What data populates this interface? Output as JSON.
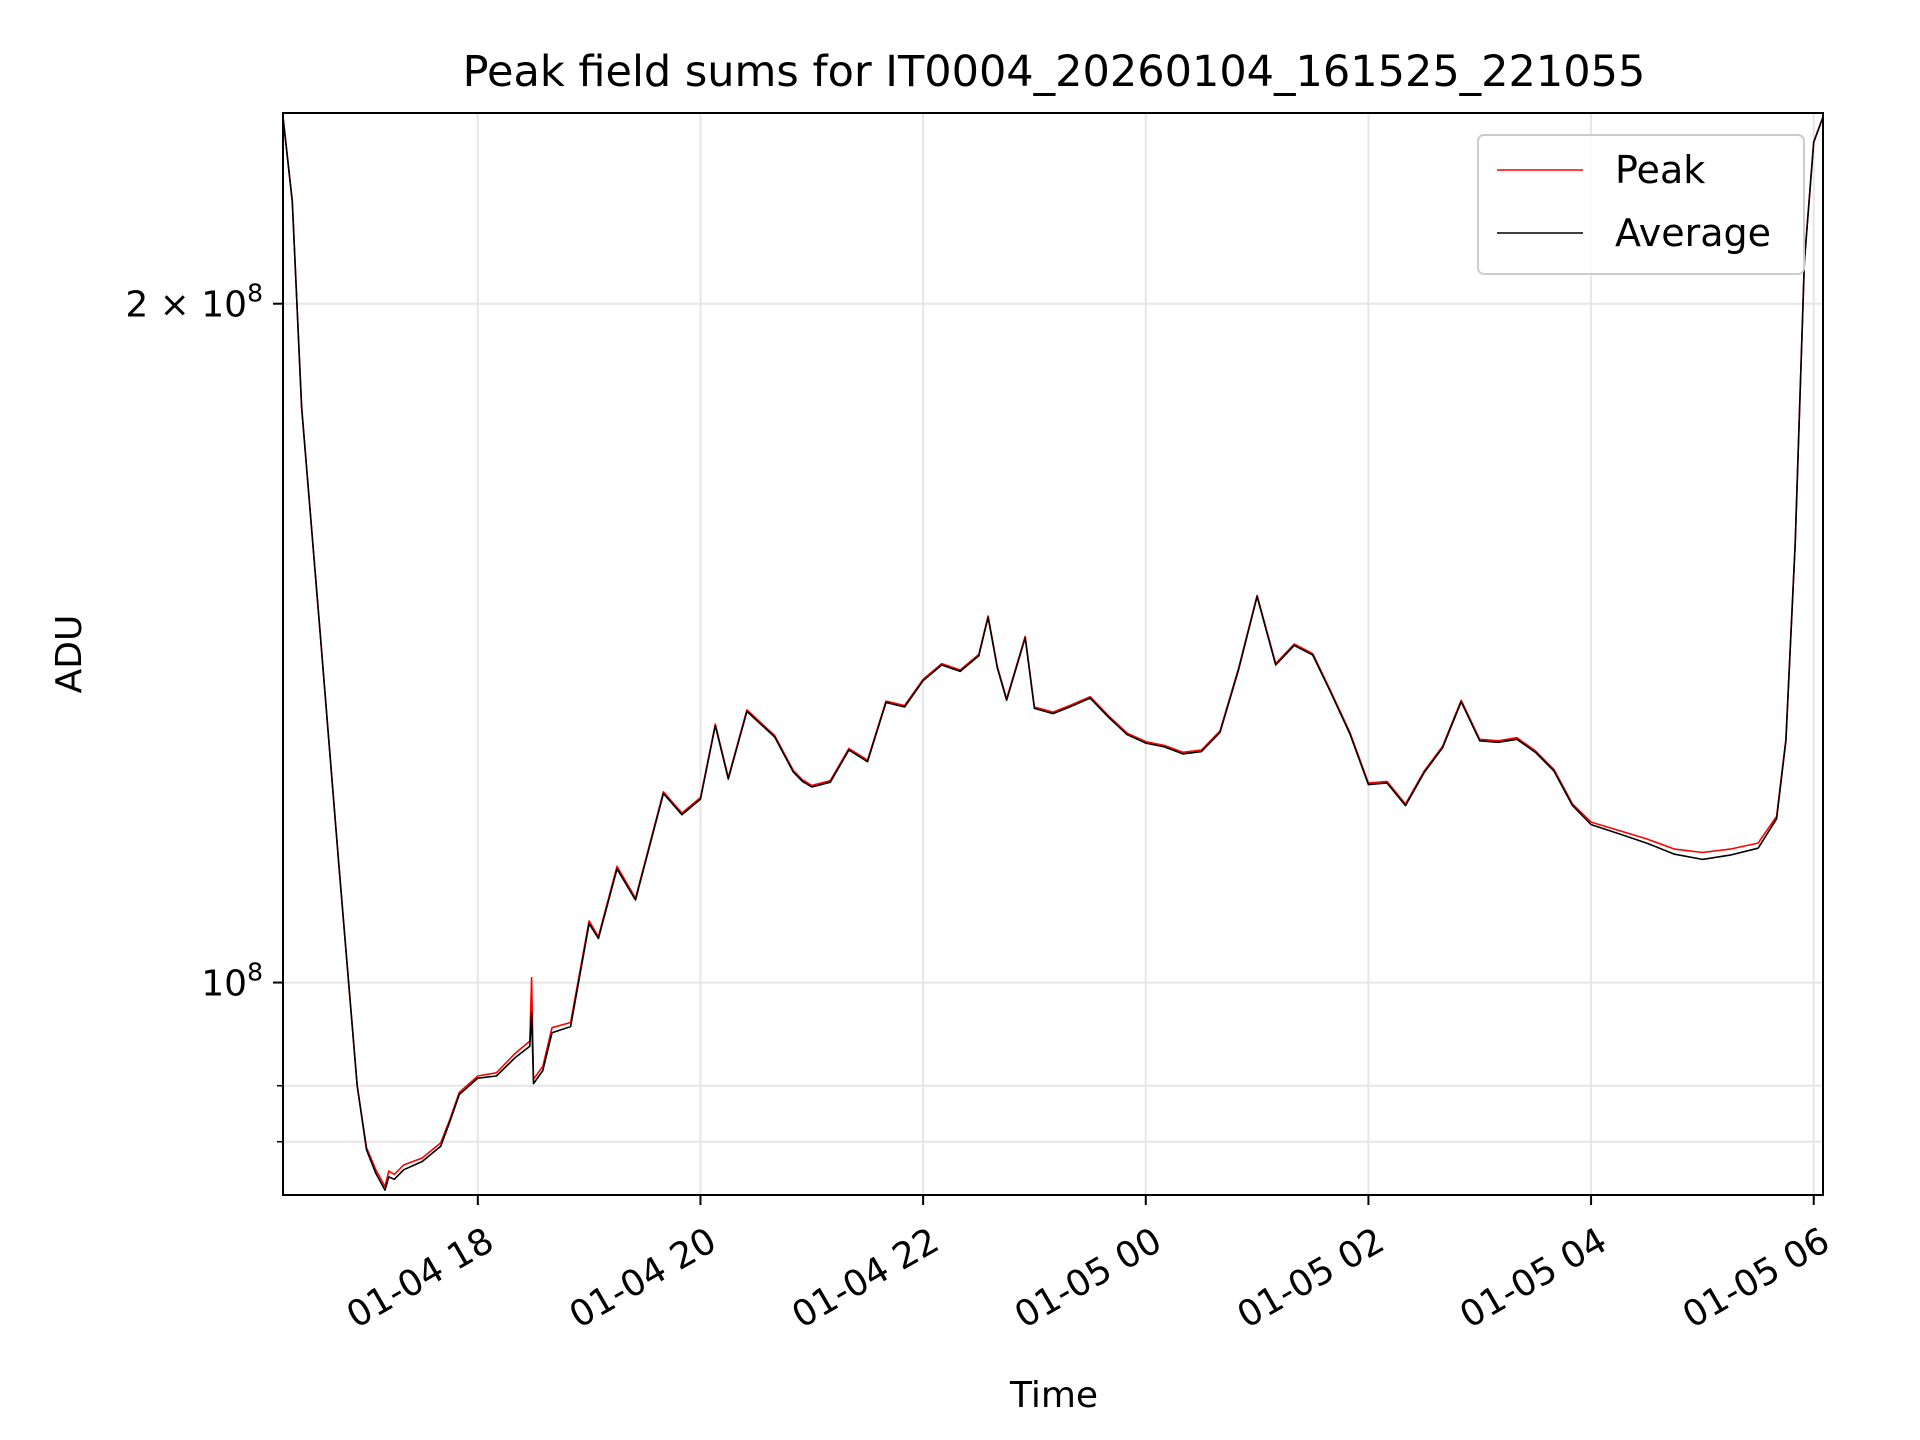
{
  "chart_data": {
    "type": "line",
    "title": "Peak field sums for IT0004_20260104_161525_221055",
    "xlabel": "Time",
    "ylabel": "ADU",
    "y_scale": "log",
    "grid": true,
    "legend_position": "top-right",
    "xlim": [
      "2026-01-04 16:15",
      "2026-01-05 06:05"
    ],
    "ylim": [
      80500000,
      243000000
    ],
    "x_ticks": [
      {
        "value": "2026-01-04 18:00",
        "label": "01-04 18"
      },
      {
        "value": "2026-01-04 20:00",
        "label": "01-04 20"
      },
      {
        "value": "2026-01-04 22:00",
        "label": "01-04 22"
      },
      {
        "value": "2026-01-05 00:00",
        "label": "01-05 00"
      },
      {
        "value": "2026-01-05 02:00",
        "label": "01-05 02"
      },
      {
        "value": "2026-01-05 04:00",
        "label": "01-05 04"
      },
      {
        "value": "2026-01-05 06:00",
        "label": "01-05 06"
      }
    ],
    "y_major_ticks": [
      {
        "value": 100000000,
        "label_base": "10",
        "label_exp": "8",
        "label_coef": ""
      },
      {
        "value": 200000000,
        "label_base": "10",
        "label_exp": "8",
        "label_coef": "2 × "
      }
    ],
    "y_minor_ticks": [
      85000000,
      90000000
    ],
    "series": [
      {
        "name": "Peak",
        "color": "#ff0000",
        "points": [
          [
            "2026-01-04 16:15",
            242000000
          ],
          [
            "2026-01-04 16:20",
            222000000
          ],
          [
            "2026-01-04 16:25",
            180000000
          ],
          [
            "2026-01-04 16:35",
            143000000
          ],
          [
            "2026-01-04 16:45",
            113000000
          ],
          [
            "2026-01-04 16:55",
            90000000
          ],
          [
            "2026-01-04 17:00",
            84500000
          ],
          [
            "2026-01-04 17:05",
            82600000
          ],
          [
            "2026-01-04 17:10",
            81200000
          ],
          [
            "2026-01-04 17:12",
            82500000
          ],
          [
            "2026-01-04 17:15",
            82200000
          ],
          [
            "2026-01-04 17:20",
            83000000
          ],
          [
            "2026-01-04 17:30",
            83600000
          ],
          [
            "2026-01-04 17:40",
            84900000
          ],
          [
            "2026-01-04 17:45",
            87000000
          ],
          [
            "2026-01-04 17:50",
            89400000
          ],
          [
            "2026-01-04 18:00",
            90900000
          ],
          [
            "2026-01-04 18:10",
            91200000
          ],
          [
            "2026-01-04 18:20",
            93000000
          ],
          [
            "2026-01-04 18:28",
            94200000
          ],
          [
            "2026-01-04 18:29",
            100500000
          ],
          [
            "2026-01-04 18:30",
            90600000
          ],
          [
            "2026-01-04 18:35",
            91800000
          ],
          [
            "2026-01-04 18:40",
            95500000
          ],
          [
            "2026-01-04 18:50",
            96000000
          ],
          [
            "2026-01-04 19:00",
            106500000
          ],
          [
            "2026-01-04 19:05",
            104800000
          ],
          [
            "2026-01-04 19:15",
            112600000
          ],
          [
            "2026-01-04 19:25",
            109000000
          ],
          [
            "2026-01-04 19:40",
            121500000
          ],
          [
            "2026-01-04 19:50",
            118900000
          ],
          [
            "2026-01-04 20:00",
            120800000
          ],
          [
            "2026-01-04 20:08",
            130200000
          ],
          [
            "2026-01-04 20:15",
            123300000
          ],
          [
            "2026-01-04 20:25",
            132100000
          ],
          [
            "2026-01-04 20:40",
            128700000
          ],
          [
            "2026-01-04 20:50",
            124200000
          ],
          [
            "2026-01-04 20:55",
            123000000
          ],
          [
            "2026-01-04 21:00",
            122300000
          ],
          [
            "2026-01-04 21:10",
            122900000
          ],
          [
            "2026-01-04 21:20",
            127000000
          ],
          [
            "2026-01-04 21:30",
            125500000
          ],
          [
            "2026-01-04 21:40",
            133300000
          ],
          [
            "2026-01-04 21:50",
            132700000
          ],
          [
            "2026-01-04 22:00",
            136300000
          ],
          [
            "2026-01-04 22:10",
            138500000
          ],
          [
            "2026-01-04 22:20",
            137600000
          ],
          [
            "2026-01-04 22:30",
            139800000
          ],
          [
            "2026-01-04 22:35",
            145400000
          ],
          [
            "2026-01-04 22:40",
            138100000
          ],
          [
            "2026-01-04 22:45",
            133600000
          ],
          [
            "2026-01-04 22:55",
            142400000
          ],
          [
            "2026-01-04 23:00",
            132500000
          ],
          [
            "2026-01-04 23:10",
            131800000
          ],
          [
            "2026-01-04 23:20",
            132800000
          ],
          [
            "2026-01-04 23:30",
            133900000
          ],
          [
            "2026-01-04 23:40",
            131300000
          ],
          [
            "2026-01-04 23:50",
            129000000
          ],
          [
            "2026-01-05 00:00",
            127900000
          ],
          [
            "2026-01-05 00:10",
            127400000
          ],
          [
            "2026-01-05 00:20",
            126500000
          ],
          [
            "2026-01-05 00:30",
            126800000
          ],
          [
            "2026-01-05 00:40",
            129300000
          ],
          [
            "2026-01-05 00:50",
            137800000
          ],
          [
            "2026-01-05 01:00",
            148500000
          ],
          [
            "2026-01-05 01:10",
            138500000
          ],
          [
            "2026-01-05 01:20",
            141300000
          ],
          [
            "2026-01-05 01:30",
            139900000
          ],
          [
            "2026-01-05 01:40",
            134500000
          ],
          [
            "2026-01-05 01:50",
            129100000
          ],
          [
            "2026-01-05 02:00",
            122600000
          ],
          [
            "2026-01-05 02:10",
            122800000
          ],
          [
            "2026-01-05 02:20",
            120000000
          ],
          [
            "2026-01-05 02:30",
            124100000
          ],
          [
            "2026-01-05 02:40",
            127300000
          ],
          [
            "2026-01-05 02:50",
            133400000
          ],
          [
            "2026-01-05 03:00",
            128200000
          ],
          [
            "2026-01-05 03:10",
            128000000
          ],
          [
            "2026-01-05 03:20",
            128400000
          ],
          [
            "2026-01-05 03:30",
            126700000
          ],
          [
            "2026-01-05 03:40",
            124300000
          ],
          [
            "2026-01-05 03:50",
            120000000
          ],
          [
            "2026-01-05 04:00",
            117800000
          ],
          [
            "2026-01-05 04:15",
            116800000
          ],
          [
            "2026-01-05 04:30",
            115800000
          ],
          [
            "2026-01-05 04:45",
            114600000
          ],
          [
            "2026-01-05 05:00",
            114200000
          ],
          [
            "2026-01-05 05:15",
            114600000
          ],
          [
            "2026-01-05 05:30",
            115300000
          ],
          [
            "2026-01-05 05:40",
            118500000
          ],
          [
            "2026-01-05 05:45",
            128200000
          ],
          [
            "2026-01-05 05:50",
            156700000
          ],
          [
            "2026-01-05 05:55",
            209000000
          ],
          [
            "2026-01-05 06:00",
            236000000
          ],
          [
            "2026-01-05 06:05",
            242000000
          ]
        ]
      },
      {
        "name": "Average",
        "color": "#000000",
        "points": [
          [
            "2026-01-04 16:15",
            242000000
          ],
          [
            "2026-01-04 16:20",
            222000000
          ],
          [
            "2026-01-04 16:25",
            180000000
          ],
          [
            "2026-01-04 16:35",
            143000000
          ],
          [
            "2026-01-04 16:45",
            113000000
          ],
          [
            "2026-01-04 16:55",
            90000000
          ],
          [
            "2026-01-04 17:00",
            84300000
          ],
          [
            "2026-01-04 17:05",
            82300000
          ],
          [
            "2026-01-04 17:10",
            80900000
          ],
          [
            "2026-01-04 17:12",
            82000000
          ],
          [
            "2026-01-04 17:15",
            81800000
          ],
          [
            "2026-01-04 17:20",
            82600000
          ],
          [
            "2026-01-04 17:30",
            83300000
          ],
          [
            "2026-01-04 17:40",
            84600000
          ],
          [
            "2026-01-04 17:45",
            86800000
          ],
          [
            "2026-01-04 17:50",
            89200000
          ],
          [
            "2026-01-04 18:00",
            90700000
          ],
          [
            "2026-01-04 18:10",
            90900000
          ],
          [
            "2026-01-04 18:20",
            92600000
          ],
          [
            "2026-01-04 18:28",
            93700000
          ],
          [
            "2026-01-04 18:29",
            97000000
          ],
          [
            "2026-01-04 18:30",
            90200000
          ],
          [
            "2026-01-04 18:35",
            91400000
          ],
          [
            "2026-01-04 18:40",
            95000000
          ],
          [
            "2026-01-04 18:50",
            95600000
          ],
          [
            "2026-01-04 19:00",
            106200000
          ],
          [
            "2026-01-04 19:05",
            104600000
          ],
          [
            "2026-01-04 19:15",
            112300000
          ],
          [
            "2026-01-04 19:25",
            108800000
          ],
          [
            "2026-01-04 19:40",
            121300000
          ],
          [
            "2026-01-04 19:50",
            118700000
          ],
          [
            "2026-01-04 20:00",
            120600000
          ],
          [
            "2026-01-04 20:08",
            130000000
          ],
          [
            "2026-01-04 20:15",
            123100000
          ],
          [
            "2026-01-04 20:25",
            131900000
          ],
          [
            "2026-01-04 20:40",
            128500000
          ],
          [
            "2026-01-04 20:50",
            124000000
          ],
          [
            "2026-01-04 20:55",
            122800000
          ],
          [
            "2026-01-04 21:00",
            122100000
          ],
          [
            "2026-01-04 21:10",
            122700000
          ],
          [
            "2026-01-04 21:20",
            126800000
          ],
          [
            "2026-01-04 21:30",
            125300000
          ],
          [
            "2026-01-04 21:40",
            133100000
          ],
          [
            "2026-01-04 21:50",
            132500000
          ],
          [
            "2026-01-04 22:00",
            136100000
          ],
          [
            "2026-01-04 22:10",
            138300000
          ],
          [
            "2026-01-04 22:20",
            137400000
          ],
          [
            "2026-01-04 22:30",
            139600000
          ],
          [
            "2026-01-04 22:35",
            145200000
          ],
          [
            "2026-01-04 22:40",
            137900000
          ],
          [
            "2026-01-04 22:45",
            133400000
          ],
          [
            "2026-01-04 22:55",
            142200000
          ],
          [
            "2026-01-04 23:00",
            132300000
          ],
          [
            "2026-01-04 23:10",
            131600000
          ],
          [
            "2026-01-04 23:20",
            132600000
          ],
          [
            "2026-01-04 23:30",
            133700000
          ],
          [
            "2026-01-04 23:40",
            131100000
          ],
          [
            "2026-01-04 23:50",
            128800000
          ],
          [
            "2026-01-05 00:00",
            127700000
          ],
          [
            "2026-01-05 00:10",
            127200000
          ],
          [
            "2026-01-05 00:20",
            126300000
          ],
          [
            "2026-01-05 00:30",
            126600000
          ],
          [
            "2026-01-05 00:40",
            129100000
          ],
          [
            "2026-01-05 00:50",
            137600000
          ],
          [
            "2026-01-05 01:00",
            148300000
          ],
          [
            "2026-01-05 01:10",
            138300000
          ],
          [
            "2026-01-05 01:20",
            141100000
          ],
          [
            "2026-01-05 01:30",
            139700000
          ],
          [
            "2026-01-05 01:40",
            134300000
          ],
          [
            "2026-01-05 01:50",
            128900000
          ],
          [
            "2026-01-05 02:00",
            122400000
          ],
          [
            "2026-01-05 02:10",
            122600000
          ],
          [
            "2026-01-05 02:20",
            119800000
          ],
          [
            "2026-01-05 02:30",
            123900000
          ],
          [
            "2026-01-05 02:40",
            127100000
          ],
          [
            "2026-01-05 02:50",
            133200000
          ],
          [
            "2026-01-05 03:00",
            128000000
          ],
          [
            "2026-01-05 03:10",
            127800000
          ],
          [
            "2026-01-05 03:20",
            128200000
          ],
          [
            "2026-01-05 03:30",
            126500000
          ],
          [
            "2026-01-05 03:40",
            124100000
          ],
          [
            "2026-01-05 03:50",
            119800000
          ],
          [
            "2026-01-05 04:00",
            117500000
          ],
          [
            "2026-01-05 04:15",
            116400000
          ],
          [
            "2026-01-05 04:30",
            115300000
          ],
          [
            "2026-01-05 04:45",
            114000000
          ],
          [
            "2026-01-05 05:00",
            113400000
          ],
          [
            "2026-01-05 05:15",
            113900000
          ],
          [
            "2026-01-05 05:30",
            114700000
          ],
          [
            "2026-01-05 05:40",
            118200000
          ],
          [
            "2026-01-05 05:45",
            128000000
          ],
          [
            "2026-01-05 05:50",
            156500000
          ],
          [
            "2026-01-05 05:55",
            208800000
          ],
          [
            "2026-01-05 06:00",
            235800000
          ],
          [
            "2026-01-05 06:05",
            242000000
          ]
        ]
      }
    ]
  }
}
